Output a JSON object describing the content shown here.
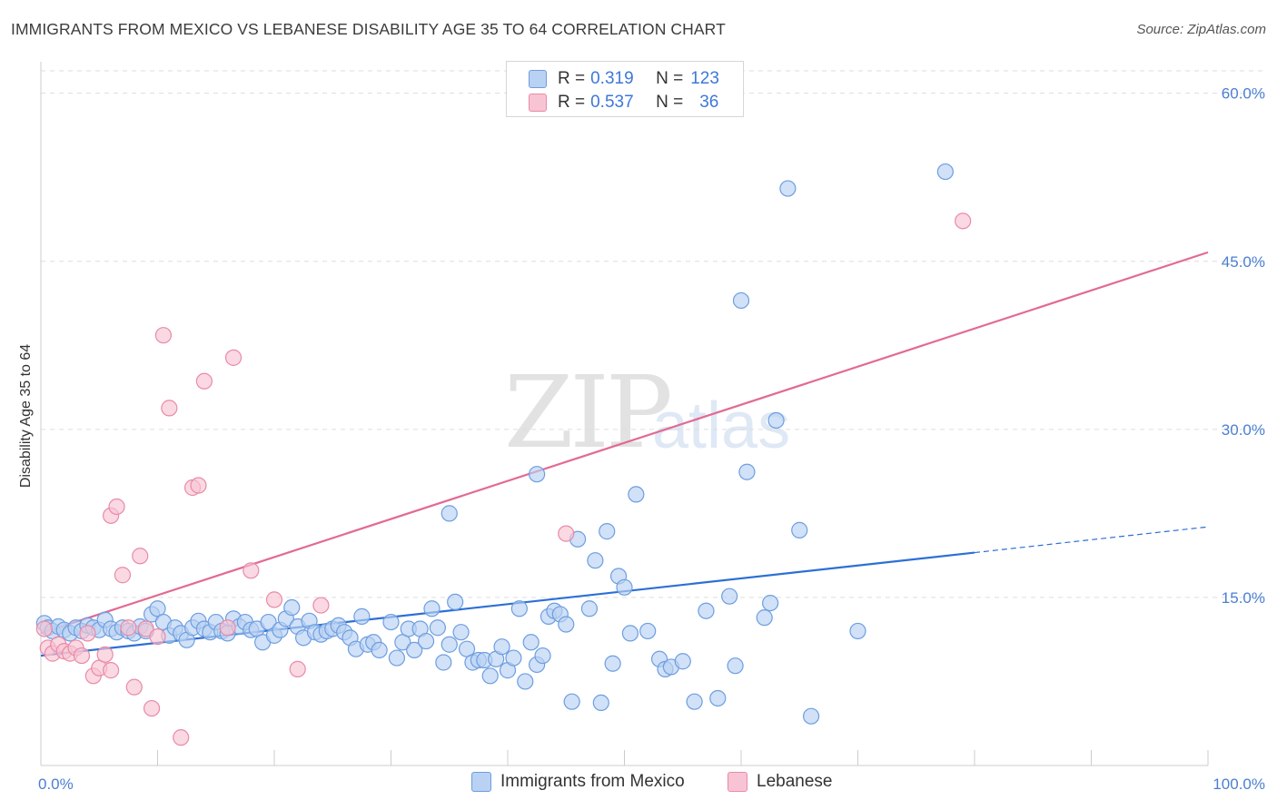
{
  "title": "IMMIGRANTS FROM MEXICO VS LEBANESE DISABILITY AGE 35 TO 64 CORRELATION CHART",
  "source": "Source: ZipAtlas.com",
  "watermark": {
    "zip": "ZIP",
    "atlas": "atlas"
  },
  "legend": {
    "rows": [
      {
        "r_label": "R = ",
        "r_value": "0.319",
        "n_label": "N = ",
        "n_value": "123"
      },
      {
        "r_label": "R = ",
        "r_value": "0.537",
        "n_label": "N = ",
        "n_value": "36"
      }
    ]
  },
  "colors": {
    "mexico_fill": "#b9d1f3",
    "mexico_stroke": "#6d9ee0",
    "mexico_line": "#2c6fd6",
    "lebanese_fill": "#f8c4d3",
    "lebanese_stroke": "#e98aa8",
    "lebanese_line": "#e26a93"
  },
  "chart_data": {
    "type": "scatter",
    "title": "IMMIGRANTS FROM MEXICO VS LEBANESE DISABILITY AGE 35 TO 64 CORRELATION CHART",
    "xlabel": "",
    "ylabel": "Disability Age 35 to 64",
    "xlim": [
      0,
      100
    ],
    "ylim": [
      0,
      62
    ],
    "x_tick_labels": [
      "0.0%",
      "100.0%"
    ],
    "y_ticks": [
      15,
      30,
      45,
      60
    ],
    "y_tick_labels": [
      "15.0%",
      "30.0%",
      "45.0%",
      "60.0%"
    ],
    "grid": true,
    "series": [
      {
        "name": "Immigrants from Mexico",
        "R": 0.319,
        "N": 123,
        "trend": {
          "x0": 0,
          "y0": 9.8,
          "x1": 80,
          "y1": 19.0,
          "dashed_to_x": 100,
          "dashed_to_y": 21.3
        },
        "points": [
          [
            0.3,
            12.7
          ],
          [
            0.6,
            12.3
          ],
          [
            1.0,
            12.0
          ],
          [
            1.5,
            12.4
          ],
          [
            2.0,
            12.1
          ],
          [
            2.5,
            11.8
          ],
          [
            3.0,
            12.3
          ],
          [
            3.5,
            12.0
          ],
          [
            4.0,
            12.5
          ],
          [
            4.5,
            12.3
          ],
          [
            5.0,
            12.1
          ],
          [
            5.5,
            13.0
          ],
          [
            6.0,
            12.2
          ],
          [
            6.5,
            11.9
          ],
          [
            7.0,
            12.3
          ],
          [
            7.5,
            12.0
          ],
          [
            8.0,
            11.8
          ],
          [
            8.5,
            12.4
          ],
          [
            9.0,
            12.0
          ],
          [
            9.5,
            13.5
          ],
          [
            10.0,
            14.0
          ],
          [
            10.5,
            12.8
          ],
          [
            11.0,
            11.6
          ],
          [
            11.5,
            12.3
          ],
          [
            12.0,
            11.8
          ],
          [
            12.5,
            11.2
          ],
          [
            13.0,
            12.3
          ],
          [
            13.5,
            12.9
          ],
          [
            14.0,
            12.2
          ],
          [
            14.5,
            11.9
          ],
          [
            15.0,
            12.8
          ],
          [
            15.5,
            12.0
          ],
          [
            16.0,
            11.8
          ],
          [
            16.5,
            13.1
          ],
          [
            17.0,
            12.4
          ],
          [
            17.5,
            12.8
          ],
          [
            18.0,
            12.1
          ],
          [
            18.5,
            12.2
          ],
          [
            19.0,
            11.0
          ],
          [
            19.5,
            12.8
          ],
          [
            20.0,
            11.6
          ],
          [
            20.5,
            12.1
          ],
          [
            21.0,
            13.1
          ],
          [
            21.5,
            14.1
          ],
          [
            22.0,
            12.4
          ],
          [
            22.5,
            11.4
          ],
          [
            23.0,
            12.9
          ],
          [
            23.5,
            11.9
          ],
          [
            24.0,
            11.7
          ],
          [
            24.5,
            12.0
          ],
          [
            25.0,
            12.2
          ],
          [
            25.5,
            12.5
          ],
          [
            26.0,
            11.9
          ],
          [
            26.5,
            11.4
          ],
          [
            27.0,
            10.4
          ],
          [
            27.5,
            13.3
          ],
          [
            28.0,
            10.8
          ],
          [
            28.5,
            11.0
          ],
          [
            29.0,
            10.3
          ],
          [
            30.0,
            12.8
          ],
          [
            30.5,
            9.6
          ],
          [
            31.0,
            11.0
          ],
          [
            31.5,
            12.2
          ],
          [
            32.0,
            10.3
          ],
          [
            32.5,
            12.2
          ],
          [
            33.0,
            11.1
          ],
          [
            33.5,
            14.0
          ],
          [
            34.0,
            12.3
          ],
          [
            34.5,
            9.2
          ],
          [
            35.0,
            10.8
          ],
          [
            35.5,
            14.6
          ],
          [
            36.0,
            11.9
          ],
          [
            36.5,
            10.4
          ],
          [
            37.0,
            9.2
          ],
          [
            37.5,
            9.4
          ],
          [
            38.0,
            9.4
          ],
          [
            38.5,
            8.0
          ],
          [
            39.0,
            9.5
          ],
          [
            39.5,
            10.6
          ],
          [
            40.0,
            8.5
          ],
          [
            40.5,
            9.6
          ],
          [
            41.0,
            14.0
          ],
          [
            41.5,
            7.5
          ],
          [
            42.0,
            11.0
          ],
          [
            42.5,
            9.0
          ],
          [
            43.0,
            9.8
          ],
          [
            43.5,
            13.3
          ],
          [
            44.0,
            13.8
          ],
          [
            44.5,
            13.5
          ],
          [
            45.0,
            12.6
          ],
          [
            45.5,
            5.7
          ],
          [
            46.0,
            20.2
          ],
          [
            47.0,
            14.0
          ],
          [
            47.5,
            18.3
          ],
          [
            48.0,
            5.6
          ],
          [
            48.5,
            20.9
          ],
          [
            49.0,
            9.1
          ],
          [
            49.5,
            16.9
          ],
          [
            50.0,
            15.9
          ],
          [
            50.5,
            11.8
          ],
          [
            51.0,
            24.2
          ],
          [
            52.0,
            12.0
          ],
          [
            53.0,
            9.5
          ],
          [
            53.5,
            8.6
          ],
          [
            54.0,
            8.8
          ],
          [
            55.0,
            9.3
          ],
          [
            56.0,
            5.7
          ],
          [
            57.0,
            13.8
          ],
          [
            58.0,
            6.0
          ],
          [
            59.0,
            15.1
          ],
          [
            59.5,
            8.9
          ],
          [
            60.0,
            41.5
          ],
          [
            60.5,
            26.2
          ],
          [
            62.0,
            13.2
          ],
          [
            62.5,
            14.5
          ],
          [
            63.0,
            30.8
          ],
          [
            64.0,
            51.5
          ],
          [
            65.0,
            21.0
          ],
          [
            66.0,
            4.4
          ],
          [
            70.0,
            12.0
          ],
          [
            77.5,
            53.0
          ],
          [
            35.0,
            22.5
          ],
          [
            42.5,
            26.0
          ]
        ]
      },
      {
        "name": "Lebanese",
        "R": 0.537,
        "N": 36,
        "trend": {
          "x0": 0,
          "y0": 11.8,
          "x1": 100,
          "y1": 45.8
        },
        "points": [
          [
            0.3,
            12.2
          ],
          [
            0.6,
            10.5
          ],
          [
            1.0,
            10.0
          ],
          [
            1.5,
            10.8
          ],
          [
            2.0,
            10.2
          ],
          [
            2.5,
            10.0
          ],
          [
            3.0,
            10.5
          ],
          [
            3.5,
            9.8
          ],
          [
            4.0,
            11.8
          ],
          [
            4.5,
            8.0
          ],
          [
            5.0,
            8.7
          ],
          [
            5.5,
            9.9
          ],
          [
            6.0,
            22.3
          ],
          [
            6.5,
            23.1
          ],
          [
            7.0,
            17.0
          ],
          [
            7.5,
            12.3
          ],
          [
            8.0,
            7.0
          ],
          [
            8.5,
            18.7
          ],
          [
            9.0,
            12.2
          ],
          [
            9.5,
            5.1
          ],
          [
            10.0,
            11.5
          ],
          [
            10.5,
            38.4
          ],
          [
            11.0,
            31.9
          ],
          [
            12.0,
            2.5
          ],
          [
            13.0,
            24.8
          ],
          [
            13.5,
            25.0
          ],
          [
            14.0,
            34.3
          ],
          [
            16.0,
            12.3
          ],
          [
            16.5,
            36.4
          ],
          [
            18.0,
            17.4
          ],
          [
            20.0,
            14.8
          ],
          [
            22.0,
            8.6
          ],
          [
            24.0,
            14.3
          ],
          [
            45.0,
            20.7
          ],
          [
            79.0,
            48.6
          ],
          [
            6.0,
            8.5
          ]
        ]
      }
    ]
  },
  "x_axis": {
    "left_label": "0.0%",
    "right_label": "100.0%"
  },
  "bottom_legend": [
    {
      "label": "Immigrants from Mexico"
    },
    {
      "label": "Lebanese"
    }
  ]
}
